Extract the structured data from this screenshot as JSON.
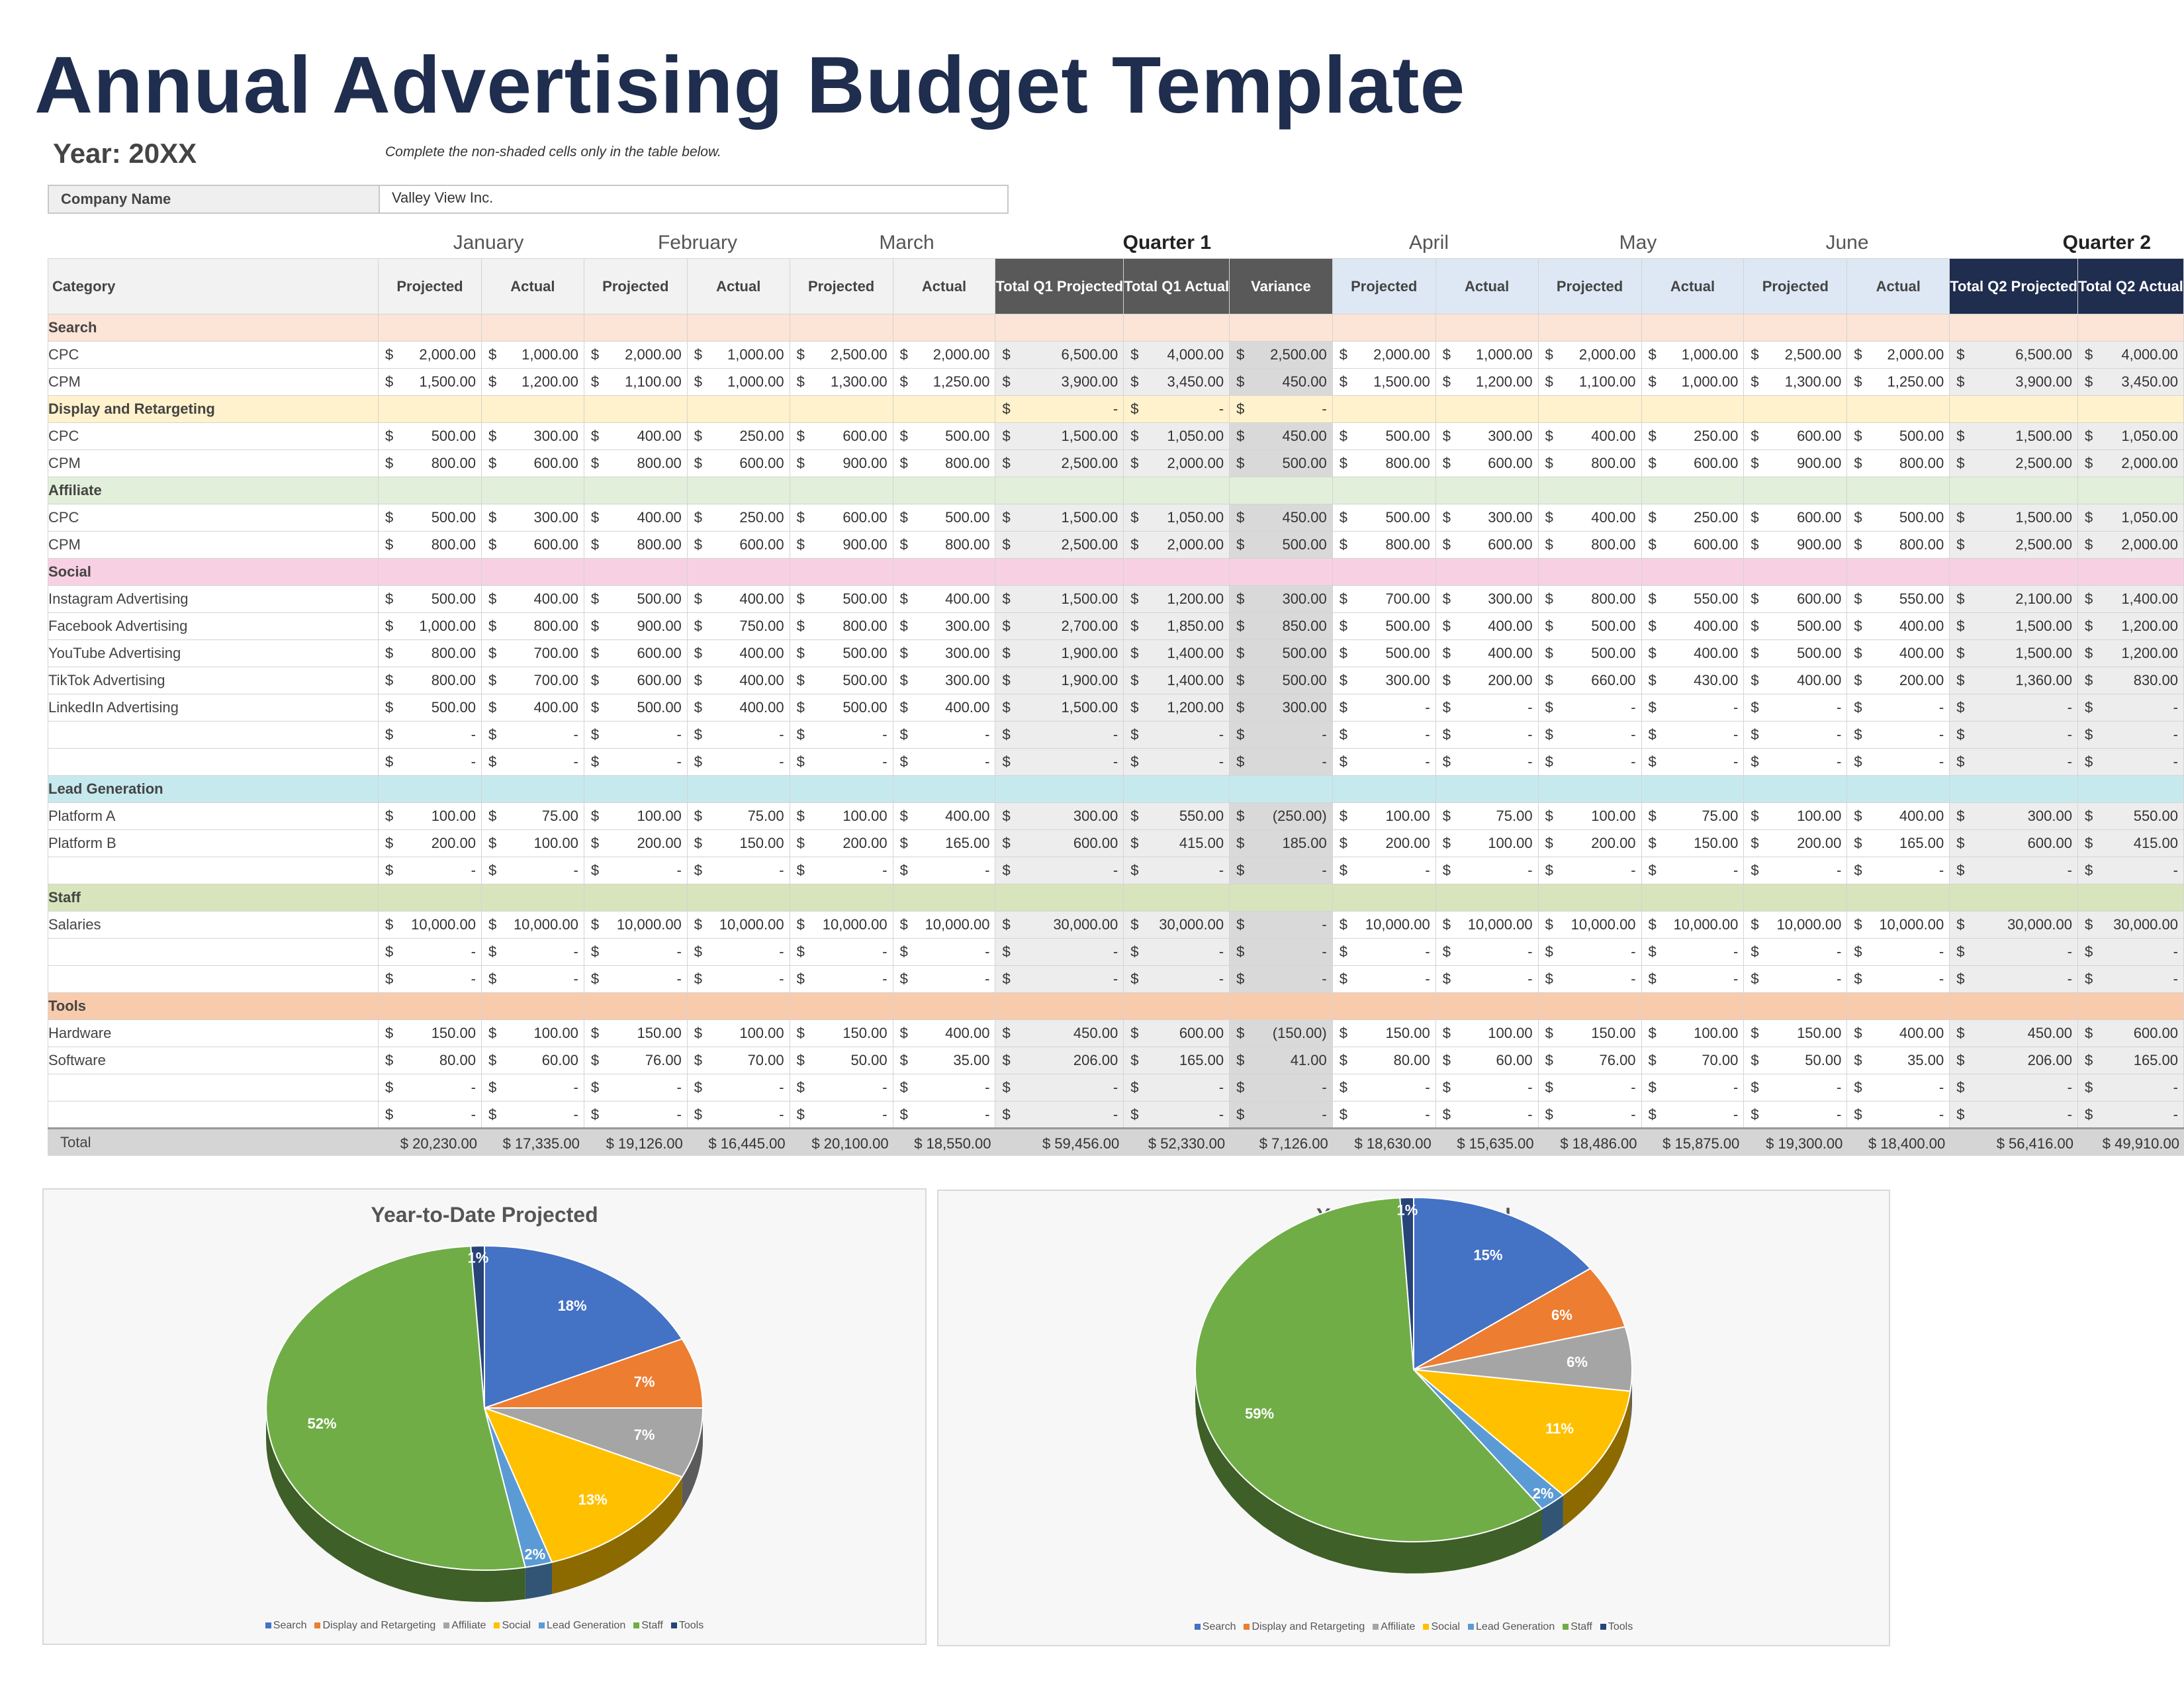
{
  "title": "Annual Advertising Budget Template",
  "year_label": "Year: 20XX",
  "instructions": "Complete the non-shaded cells only in the table below.",
  "company": {
    "label": "Company Name",
    "value": "Valley View Inc."
  },
  "month_labels": [
    "January",
    "February",
    "March",
    "Quarter 1",
    "April",
    "May",
    "June",
    "Quarter 2"
  ],
  "col_headers": [
    "Category",
    "Projected",
    "Actual",
    "Projected",
    "Actual",
    "Projected",
    "Actual",
    "Total Q1 Projected",
    "Total Q1 Actual",
    "Variance",
    "Projected",
    "Actual",
    "Projected",
    "Actual",
    "Projected",
    "Actual",
    "Total Q2 Projected",
    "Total Q2 Actual"
  ],
  "currency": "$",
  "colors": {
    "Search": "#fce4d6",
    "Display and Retargeting": "#fff2cc",
    "Affiliate": "#e2efda",
    "Social": "#f8d0e3",
    "Lead Generation": "#c6e9ee",
    "Staff": "#d8e4bc",
    "Tools": "#f8cbad",
    "title": "#1f2d4e",
    "q1_header": "#595959",
    "q2_header": "#1f2d4e"
  },
  "sections": [
    {
      "name": "Search",
      "rows": [
        {
          "label": "CPC",
          "values": [
            "2,000.00",
            "1,000.00",
            "2,000.00",
            "1,000.00",
            "2,500.00",
            "2,000.00",
            "6,500.00",
            "4,000.00",
            "2,500.00",
            "2,000.00",
            "1,000.00",
            "2,000.00",
            "1,000.00",
            "2,500.00",
            "2,000.00",
            "6,500.00",
            "4,000.00"
          ]
        },
        {
          "label": "CPM",
          "values": [
            "1,500.00",
            "1,200.00",
            "1,100.00",
            "1,000.00",
            "1,300.00",
            "1,250.00",
            "3,900.00",
            "3,450.00",
            "450.00",
            "1,500.00",
            "1,200.00",
            "1,100.00",
            "1,000.00",
            "1,300.00",
            "1,250.00",
            "3,900.00",
            "3,450.00"
          ]
        }
      ]
    },
    {
      "name": "Display and Retargeting",
      "header_values": [
        "",
        "",
        "",
        "",
        "",
        "",
        "-",
        "-",
        "-",
        "",
        "",
        "",
        "",
        "",
        "",
        "",
        ""
      ],
      "rows": [
        {
          "label": "CPC",
          "values": [
            "500.00",
            "300.00",
            "400.00",
            "250.00",
            "600.00",
            "500.00",
            "1,500.00",
            "1,050.00",
            "450.00",
            "500.00",
            "300.00",
            "400.00",
            "250.00",
            "600.00",
            "500.00",
            "1,500.00",
            "1,050.00"
          ]
        },
        {
          "label": "CPM",
          "values": [
            "800.00",
            "600.00",
            "800.00",
            "600.00",
            "900.00",
            "800.00",
            "2,500.00",
            "2,000.00",
            "500.00",
            "800.00",
            "600.00",
            "800.00",
            "600.00",
            "900.00",
            "800.00",
            "2,500.00",
            "2,000.00"
          ]
        }
      ]
    },
    {
      "name": "Affiliate",
      "rows": [
        {
          "label": "CPC",
          "values": [
            "500.00",
            "300.00",
            "400.00",
            "250.00",
            "600.00",
            "500.00",
            "1,500.00",
            "1,050.00",
            "450.00",
            "500.00",
            "300.00",
            "400.00",
            "250.00",
            "600.00",
            "500.00",
            "1,500.00",
            "1,050.00"
          ]
        },
        {
          "label": "CPM",
          "values": [
            "800.00",
            "600.00",
            "800.00",
            "600.00",
            "900.00",
            "800.00",
            "2,500.00",
            "2,000.00",
            "500.00",
            "800.00",
            "600.00",
            "800.00",
            "600.00",
            "900.00",
            "800.00",
            "2,500.00",
            "2,000.00"
          ]
        }
      ]
    },
    {
      "name": "Social",
      "rows": [
        {
          "label": "Instagram Advertising",
          "values": [
            "500.00",
            "400.00",
            "500.00",
            "400.00",
            "500.00",
            "400.00",
            "1,500.00",
            "1,200.00",
            "300.00",
            "700.00",
            "300.00",
            "800.00",
            "550.00",
            "600.00",
            "550.00",
            "2,100.00",
            "1,400.00"
          ]
        },
        {
          "label": "Facebook Advertising",
          "values": [
            "1,000.00",
            "800.00",
            "900.00",
            "750.00",
            "800.00",
            "300.00",
            "2,700.00",
            "1,850.00",
            "850.00",
            "500.00",
            "400.00",
            "500.00",
            "400.00",
            "500.00",
            "400.00",
            "1,500.00",
            "1,200.00"
          ]
        },
        {
          "label": "YouTube Advertising",
          "values": [
            "800.00",
            "700.00",
            "600.00",
            "400.00",
            "500.00",
            "300.00",
            "1,900.00",
            "1,400.00",
            "500.00",
            "500.00",
            "400.00",
            "500.00",
            "400.00",
            "500.00",
            "400.00",
            "1,500.00",
            "1,200.00"
          ]
        },
        {
          "label": "TikTok Advertising",
          "values": [
            "800.00",
            "700.00",
            "600.00",
            "400.00",
            "500.00",
            "300.00",
            "1,900.00",
            "1,400.00",
            "500.00",
            "300.00",
            "200.00",
            "660.00",
            "430.00",
            "400.00",
            "200.00",
            "1,360.00",
            "830.00"
          ]
        },
        {
          "label": "LinkedIn Advertising",
          "values": [
            "500.00",
            "400.00",
            "500.00",
            "400.00",
            "500.00",
            "400.00",
            "1,500.00",
            "1,200.00",
            "300.00",
            "-",
            "-",
            "-",
            "-",
            "-",
            "-",
            "-",
            "-"
          ]
        },
        {
          "label": "",
          "values": [
            "-",
            "-",
            "-",
            "-",
            "-",
            "-",
            "-",
            "-",
            "-",
            "-",
            "-",
            "-",
            "-",
            "-",
            "-",
            "-",
            "-"
          ]
        },
        {
          "label": "",
          "values": [
            "-",
            "-",
            "-",
            "-",
            "-",
            "-",
            "-",
            "-",
            "-",
            "-",
            "-",
            "-",
            "-",
            "-",
            "-",
            "-",
            "-"
          ]
        }
      ]
    },
    {
      "name": "Lead Generation",
      "rows": [
        {
          "label": "Platform A",
          "values": [
            "100.00",
            "75.00",
            "100.00",
            "75.00",
            "100.00",
            "400.00",
            "300.00",
            "550.00",
            "(250.00)",
            "100.00",
            "75.00",
            "100.00",
            "75.00",
            "100.00",
            "400.00",
            "300.00",
            "550.00"
          ]
        },
        {
          "label": "Platform B",
          "values": [
            "200.00",
            "100.00",
            "200.00",
            "150.00",
            "200.00",
            "165.00",
            "600.00",
            "415.00",
            "185.00",
            "200.00",
            "100.00",
            "200.00",
            "150.00",
            "200.00",
            "165.00",
            "600.00",
            "415.00"
          ]
        },
        {
          "label": "",
          "values": [
            "-",
            "-",
            "-",
            "-",
            "-",
            "-",
            "-",
            "-",
            "-",
            "-",
            "-",
            "-",
            "-",
            "-",
            "-",
            "-",
            "-"
          ]
        }
      ]
    },
    {
      "name": "Staff",
      "rows": [
        {
          "label": "Salaries",
          "values": [
            "10,000.00",
            "10,000.00",
            "10,000.00",
            "10,000.00",
            "10,000.00",
            "10,000.00",
            "30,000.00",
            "30,000.00",
            "-",
            "10,000.00",
            "10,000.00",
            "10,000.00",
            "10,000.00",
            "10,000.00",
            "10,000.00",
            "30,000.00",
            "30,000.00"
          ]
        },
        {
          "label": "",
          "values": [
            "-",
            "-",
            "-",
            "-",
            "-",
            "-",
            "-",
            "-",
            "-",
            "-",
            "-",
            "-",
            "-",
            "-",
            "-",
            "-",
            "-"
          ]
        },
        {
          "label": "",
          "values": [
            "-",
            "-",
            "-",
            "-",
            "-",
            "-",
            "-",
            "-",
            "-",
            "-",
            "-",
            "-",
            "-",
            "-",
            "-",
            "-",
            "-"
          ]
        }
      ]
    },
    {
      "name": "Tools",
      "rows": [
        {
          "label": "Hardware",
          "values": [
            "150.00",
            "100.00",
            "150.00",
            "100.00",
            "150.00",
            "400.00",
            "450.00",
            "600.00",
            "(150.00)",
            "150.00",
            "100.00",
            "150.00",
            "100.00",
            "150.00",
            "400.00",
            "450.00",
            "600.00"
          ]
        },
        {
          "label": "Software",
          "values": [
            "80.00",
            "60.00",
            "76.00",
            "70.00",
            "50.00",
            "35.00",
            "206.00",
            "165.00",
            "41.00",
            "80.00",
            "60.00",
            "76.00",
            "70.00",
            "50.00",
            "35.00",
            "206.00",
            "165.00"
          ]
        },
        {
          "label": "",
          "values": [
            "-",
            "-",
            "-",
            "-",
            "-",
            "-",
            "-",
            "-",
            "-",
            "-",
            "-",
            "-",
            "-",
            "-",
            "-",
            "-",
            "-"
          ]
        },
        {
          "label": "",
          "values": [
            "-",
            "-",
            "-",
            "-",
            "-",
            "-",
            "-",
            "-",
            "-",
            "-",
            "-",
            "-",
            "-",
            "-",
            "-",
            "-",
            "-"
          ]
        }
      ]
    }
  ],
  "total": {
    "label": "Total",
    "values": [
      "$ 20,230.00",
      "$ 17,335.00",
      "$ 19,126.00",
      "$ 16,445.00",
      "$ 20,100.00",
      "$ 18,550.00",
      "$ 59,456.00",
      "$ 52,330.00",
      "$ 7,126.00",
      "$ 18,630.00",
      "$ 15,635.00",
      "$ 18,486.00",
      "$ 15,875.00",
      "$ 19,300.00",
      "$ 18,400.00",
      "$ 56,416.00",
      "$ 49,910.00"
    ]
  },
  "chart_data": [
    {
      "type": "pie",
      "title": "Year-to-Date Projected",
      "categories": [
        "Search",
        "Display and Retargeting",
        "Affiliate",
        "Social",
        "Lead Generation",
        "Staff",
        "Tools"
      ],
      "values": [
        18,
        7,
        7,
        13,
        2,
        52,
        1
      ],
      "labels": [
        "18%",
        "7%",
        "7%",
        "13%",
        "2%",
        "52%",
        "1%"
      ],
      "colors": [
        "#4472c4",
        "#ed7d31",
        "#a5a5a5",
        "#ffc000",
        "#5b9bd5",
        "#70ad47",
        "#264478"
      ],
      "legend": "bottom"
    },
    {
      "type": "pie",
      "title": "Year-to-Date Actual",
      "categories": [
        "Search",
        "Display and Retargeting",
        "Affiliate",
        "Social",
        "Lead Generation",
        "Staff",
        "Tools"
      ],
      "values": [
        15,
        6,
        6,
        11,
        2,
        59,
        1
      ],
      "labels": [
        "15%",
        "6%",
        "6%",
        "11%",
        "2%",
        "59%",
        "1%"
      ],
      "colors": [
        "#4472c4",
        "#ed7d31",
        "#a5a5a5",
        "#ffc000",
        "#5b9bd5",
        "#70ad47",
        "#264478"
      ],
      "legend": "bottom"
    }
  ]
}
